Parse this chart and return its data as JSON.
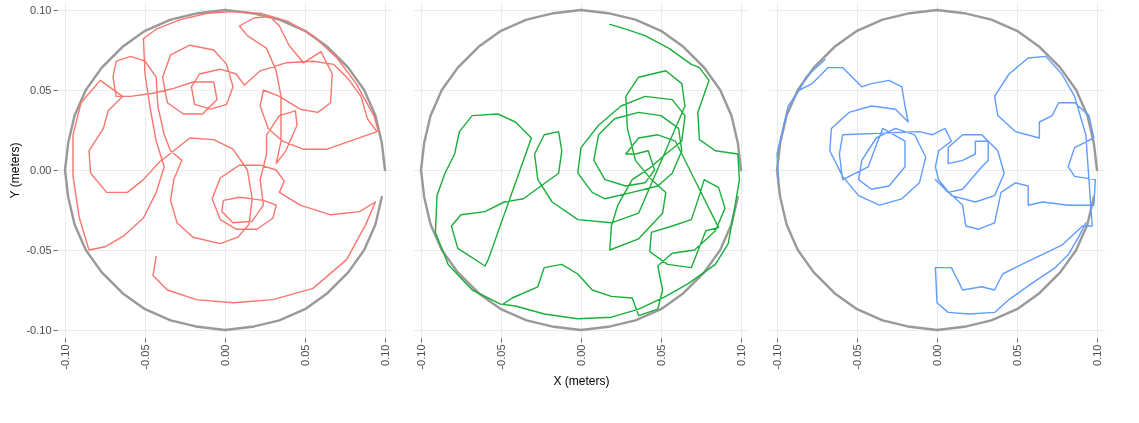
{
  "chart_data": [
    {
      "type": "line",
      "ylabel": "Y (meters)",
      "xlim": [
        -0.105,
        0.105
      ],
      "ylim": [
        -0.105,
        0.105
      ],
      "xticks": [
        {
          "value": -0.1,
          "label": "-0.10"
        },
        {
          "value": -0.05,
          "label": "-0.05"
        },
        {
          "value": 0,
          "label": "0.00"
        },
        {
          "value": 0.05,
          "label": "0.05"
        },
        {
          "value": 0.1,
          "label": "0.10"
        }
      ],
      "yticks": [
        {
          "value": -0.1,
          "label": "-0.10"
        },
        {
          "value": -0.05,
          "label": "-0.05"
        },
        {
          "value": 0,
          "label": "0.00"
        },
        {
          "value": 0.05,
          "label": "0.05"
        },
        {
          "value": 0.1,
          "label": "0.10"
        }
      ],
      "grid": true,
      "series": [
        {
          "color": "#999999",
          "x": [
            0.1,
            0.098,
            0.094,
            0.087,
            0.077,
            0.064,
            0.05,
            0.034,
            0.017,
            0,
            -0.017,
            -0.034,
            -0.05,
            -0.064,
            -0.077,
            -0.087,
            -0.094,
            -0.098,
            -0.1,
            -0.098,
            -0.094,
            -0.087,
            -0.077,
            -0.064,
            -0.05,
            -0.034,
            -0.017,
            0,
            0.017,
            0.034,
            0.05,
            0.064,
            0.077,
            0.087,
            0.094,
            0.098
          ],
          "values": [
            0,
            0.017,
            0.034,
            0.05,
            0.064,
            0.077,
            0.087,
            0.094,
            0.098,
            0.1,
            0.098,
            0.094,
            0.087,
            0.077,
            0.064,
            0.05,
            0.034,
            0.017,
            0,
            -0.017,
            -0.034,
            -0.05,
            -0.064,
            -0.077,
            -0.087,
            -0.094,
            -0.098,
            -0.1,
            -0.098,
            -0.094,
            -0.087,
            -0.077,
            -0.064,
            -0.05,
            -0.034,
            -0.017
          ]
        },
        {
          "color": "#f8766d",
          "x": [
            -0.043,
            -0.045,
            -0.036,
            -0.018,
            0.005,
            0.03,
            0.055,
            0.076,
            0.088,
            0.094,
            0.084,
            0.066,
            0.047,
            0.034,
            0.037,
            0.032,
            0.022,
            0.009,
            -0.003,
            -0.008,
            -0.003,
            0.007,
            0.02,
            0.03,
            0.032,
            0.024,
            0.009,
            -0.001,
            -0.002,
            0.005,
            0.017,
            0.024,
            0.022,
            0.026,
            0.026,
            0.034,
            0.044,
            0.045,
            0.038,
            0.032,
            0.035,
            0.035,
            0.032,
            0.026,
            0.014,
            0.009,
            0.018,
            0.028,
            0.034,
            0.04,
            0.049,
            0.06,
            0.067,
            0.066,
            0.058,
            0.047,
            0.034,
            0.024,
            0.022,
            0.027,
            0.036,
            0.049,
            0.064,
            0.078,
            0.095,
            0.089,
            0.085,
            0.077,
            0.068,
            0.055,
            0.038,
            0.022,
            0.012,
            0.007,
            -0.003,
            -0.016,
            -0.021,
            -0.019,
            -0.009,
            0.001,
            0.005,
            0.001,
            -0.007,
            -0.022,
            -0.034,
            -0.039,
            -0.036,
            -0.026,
            -0.014,
            -0.005,
            -0.007,
            -0.02,
            -0.032,
            -0.045,
            -0.059,
            -0.068,
            -0.07,
            -0.068,
            -0.059,
            -0.05,
            -0.043,
            -0.042,
            -0.038,
            -0.034,
            -0.027,
            -0.032,
            -0.034,
            -0.03,
            -0.02,
            -0.003,
            0.008,
            0.015,
            0.017,
            0.014,
            0.005,
            -0.007,
            -0.022,
            -0.032,
            -0.041,
            -0.051,
            -0.061,
            -0.074,
            -0.084,
            -0.085,
            -0.076,
            -0.073,
            -0.064,
            -0.078,
            -0.09,
            -0.095,
            -0.095,
            -0.091,
            -0.085,
            -0.075,
            -0.063,
            -0.051,
            -0.043,
            -0.038,
            -0.043,
            -0.047,
            -0.05,
            -0.051,
            -0.043,
            -0.028,
            -0.011,
            0.005,
            0.022,
            0.039,
            0.055,
            0.07,
            0.082,
            0.093,
            0.096
          ],
          "values": [
            -0.054,
            -0.066,
            -0.075,
            -0.081,
            -0.083,
            -0.081,
            -0.074,
            -0.056,
            -0.034,
            -0.02,
            -0.026,
            -0.028,
            -0.022,
            -0.014,
            -0.007,
            0.0,
            0.003,
            0.003,
            -0.005,
            -0.018,
            -0.031,
            -0.037,
            -0.037,
            -0.03,
            -0.022,
            -0.019,
            -0.017,
            -0.019,
            -0.026,
            -0.033,
            -0.032,
            -0.022,
            -0.006,
            0.01,
            0.022,
            0.034,
            0.037,
            0.028,
            0.012,
            0.004,
            0.018,
            0.046,
            0.062,
            0.076,
            0.084,
            0.09,
            0.095,
            0.096,
            0.09,
            0.078,
            0.067,
            0.074,
            0.06,
            0.042,
            0.036,
            0.038,
            0.046,
            0.05,
            0.04,
            0.026,
            0.018,
            0.013,
            0.013,
            0.018,
            0.024,
            0.032,
            0.046,
            0.057,
            0.066,
            0.068,
            0.067,
            0.062,
            0.053,
            0.06,
            0.063,
            0.06,
            0.052,
            0.041,
            0.038,
            0.041,
            0.052,
            0.066,
            0.075,
            0.078,
            0.072,
            0.058,
            0.042,
            0.035,
            0.035,
            0.044,
            0.055,
            0.055,
            0.051,
            0.048,
            0.046,
            0.046,
            0.058,
            0.068,
            0.071,
            0.068,
            0.058,
            0.04,
            0.022,
            0.012,
            0.006,
            -0.006,
            -0.019,
            -0.033,
            -0.042,
            -0.046,
            -0.042,
            -0.034,
            -0.018,
            0.0,
            0.013,
            0.019,
            0.02,
            0.012,
            0.005,
            -0.006,
            -0.014,
            -0.014,
            -0.002,
            0.012,
            0.026,
            0.037,
            0.046,
            0.056,
            0.042,
            0.022,
            -0.004,
            -0.03,
            -0.05,
            -0.048,
            -0.041,
            -0.03,
            -0.014,
            0.002,
            0.018,
            0.04,
            0.06,
            0.082,
            0.088,
            0.094,
            0.098,
            0.099,
            0.098,
            0.093,
            0.084,
            0.07,
            0.054,
            0.034,
            0.024
          ]
        }
      ]
    },
    {
      "type": "line",
      "xlabel": "X (meters)",
      "xlim": [
        -0.105,
        0.105
      ],
      "ylim": [
        -0.105,
        0.105
      ],
      "xticks": [
        {
          "value": -0.1,
          "label": "-0.10"
        },
        {
          "value": -0.05,
          "label": "-0.05"
        },
        {
          "value": 0,
          "label": "0.00"
        },
        {
          "value": 0.05,
          "label": "0.05"
        },
        {
          "value": 0.1,
          "label": "0.10"
        }
      ],
      "yticks": [
        {
          "value": -0.1,
          "label": null
        },
        {
          "value": -0.05,
          "label": null
        },
        {
          "value": 0,
          "label": null
        },
        {
          "value": 0.05,
          "label": null
        },
        {
          "value": 0.1,
          "label": null
        }
      ],
      "grid": true,
      "tick_labels": "x",
      "series": [
        {
          "color": "#999999",
          "x": [
            0.1,
            0.098,
            0.094,
            0.087,
            0.077,
            0.064,
            0.05,
            0.034,
            0.017,
            0,
            -0.017,
            -0.034,
            -0.05,
            -0.064,
            -0.077,
            -0.087,
            -0.094,
            -0.098,
            -0.1,
            -0.098,
            -0.094,
            -0.087,
            -0.077,
            -0.064,
            -0.05,
            -0.034,
            -0.017,
            0,
            0.017,
            0.034,
            0.05,
            0.064,
            0.077,
            0.087,
            0.094,
            0.098
          ],
          "values": [
            0,
            0.017,
            0.034,
            0.05,
            0.064,
            0.077,
            0.087,
            0.094,
            0.098,
            0.1,
            0.098,
            0.094,
            0.087,
            0.077,
            0.064,
            0.05,
            0.034,
            0.017,
            0,
            -0.017,
            -0.034,
            -0.05,
            -0.064,
            -0.077,
            -0.087,
            -0.094,
            -0.098,
            -0.1,
            -0.098,
            -0.094,
            -0.087,
            -0.077,
            -0.064,
            -0.05,
            -0.034,
            -0.017
          ]
        },
        {
          "color": "#1aae3a",
          "x": [
            0.018,
            0.028,
            0.04,
            0.055,
            0.069,
            0.074,
            0.08,
            0.073,
            0.074,
            0.084,
            0.098,
            0.099,
            0.096,
            0.092,
            0.084,
            0.067,
            0.053,
            0.036,
            0.019,
            -0.002,
            -0.023,
            -0.041,
            -0.049,
            -0.043,
            -0.027,
            -0.023,
            -0.012,
            -0.002,
            0.007,
            0.019,
            0.032,
            0.036,
            0.048,
            0.051,
            0.048,
            0.057,
            0.071,
            0.084,
            0.09,
            0.086,
            0.077,
            0.073,
            0.069,
            0.057,
            0.044,
            0.043,
            0.054,
            0.069,
            0.078,
            0.086,
            0.067,
            0.059,
            0.048,
            0.036,
            0.028,
            0.034,
            0.042,
            0.046,
            0.04,
            0.028,
            0.015,
            0.008,
            0.011,
            0.021,
            0.036,
            0.05,
            0.061,
            0.063,
            0.057,
            0.048,
            0.032,
            0.015,
            0.007,
            -0.002,
            0.0,
            0.011,
            0.025,
            0.04,
            0.057,
            0.065,
            0.063,
            0.053,
            0.044,
            0.032,
            0.023,
            0.019,
            0.018,
            0.036,
            0.051,
            0.053,
            0.044,
            0.034,
            0.029,
            0.028,
            0.036,
            0.053,
            0.063,
            0.065,
            0.036,
            0.019,
            -0.002,
            -0.018,
            -0.027,
            -0.029,
            -0.023,
            -0.014,
            -0.012,
            -0.014,
            -0.036,
            -0.048,
            -0.06,
            -0.075,
            -0.081,
            -0.077,
            -0.06,
            -0.058,
            -0.031,
            -0.041,
            -0.052,
            -0.068,
            -0.076,
            -0.079,
            -0.085,
            -0.09,
            -0.091,
            -0.083,
            -0.068,
            -0.05
          ],
          "values": [
            0.091,
            0.088,
            0.084,
            0.076,
            0.066,
            0.064,
            0.056,
            0.036,
            0.019,
            0.012,
            0.01,
            -0.006,
            -0.024,
            -0.046,
            -0.059,
            -0.071,
            -0.079,
            -0.087,
            -0.092,
            -0.093,
            -0.09,
            -0.085,
            -0.084,
            -0.08,
            -0.073,
            -0.061,
            -0.059,
            -0.065,
            -0.075,
            -0.079,
            -0.08,
            -0.091,
            -0.087,
            -0.075,
            -0.06,
            -0.052,
            -0.05,
            -0.038,
            -0.024,
            -0.011,
            -0.006,
            -0.019,
            -0.031,
            -0.035,
            -0.039,
            -0.051,
            -0.059,
            -0.061,
            -0.038,
            -0.036,
            0.002,
            0.018,
            0.022,
            0.02,
            0.01,
            0.01,
            0.012,
            0.0,
            -0.008,
            -0.01,
            -0.006,
            0.006,
            0.022,
            0.032,
            0.036,
            0.034,
            0.026,
            0.012,
            -0.002,
            -0.01,
            -0.014,
            -0.018,
            -0.014,
            -0.002,
            0.014,
            0.028,
            0.04,
            0.046,
            0.044,
            0.034,
            0.018,
            0.01,
            0.002,
            -0.006,
            -0.022,
            -0.035,
            -0.05,
            -0.043,
            -0.027,
            -0.014,
            -0.006,
            0.006,
            0.026,
            0.046,
            0.058,
            0.062,
            0.054,
            0.04,
            -0.027,
            -0.033,
            -0.031,
            -0.02,
            -0.006,
            0.01,
            0.022,
            0.024,
            0.012,
            -0.002,
            -0.018,
            -0.02,
            -0.026,
            -0.028,
            -0.035,
            -0.049,
            -0.06,
            -0.056,
            0.02,
            0.03,
            0.035,
            0.034,
            0.024,
            0.01,
            -0.002,
            -0.016,
            -0.039,
            -0.059,
            -0.075,
            -0.084
          ]
        }
      ]
    },
    {
      "type": "line",
      "xlim": [
        -0.105,
        0.105
      ],
      "ylim": [
        -0.105,
        0.105
      ],
      "xticks": [
        {
          "value": -0.1,
          "label": "-0.10"
        },
        {
          "value": -0.05,
          "label": "-0.05"
        },
        {
          "value": 0,
          "label": "0.00"
        },
        {
          "value": 0.05,
          "label": "0.05"
        },
        {
          "value": 0.1,
          "label": "0.10"
        }
      ],
      "yticks": [
        {
          "value": -0.1,
          "label": null
        },
        {
          "value": -0.05,
          "label": null
        },
        {
          "value": 0,
          "label": null
        },
        {
          "value": 0.05,
          "label": null
        },
        {
          "value": 0.1,
          "label": null
        }
      ],
      "grid": true,
      "tick_labels": "x",
      "series": [
        {
          "color": "#999999",
          "x": [
            0.1,
            0.098,
            0.094,
            0.087,
            0.077,
            0.064,
            0.05,
            0.034,
            0.017,
            0,
            -0.017,
            -0.034,
            -0.05,
            -0.064,
            -0.077,
            -0.087,
            -0.094,
            -0.098,
            -0.1,
            -0.098,
            -0.094,
            -0.087,
            -0.077,
            -0.064,
            -0.05,
            -0.034,
            -0.017,
            0,
            0.017,
            0.034,
            0.05,
            0.064,
            0.077,
            0.087,
            0.094,
            0.098
          ],
          "values": [
            0,
            0.017,
            0.034,
            0.05,
            0.064,
            0.077,
            0.087,
            0.094,
            0.098,
            0.1,
            0.098,
            0.094,
            0.087,
            0.077,
            0.064,
            0.05,
            0.034,
            0.017,
            0,
            -0.017,
            -0.034,
            -0.05,
            -0.064,
            -0.077,
            -0.087,
            -0.094,
            -0.098,
            -0.1,
            -0.098,
            -0.094,
            -0.087,
            -0.077,
            -0.064,
            -0.05,
            -0.034,
            -0.017
          ]
        },
        {
          "color": "#619cff",
          "x": [
            -0.099,
            -0.1,
            -0.093,
            -0.086,
            -0.082,
            -0.07,
            -0.082,
            -0.086,
            -0.078,
            -0.068,
            -0.059,
            -0.047,
            -0.041,
            -0.03,
            -0.022,
            -0.02,
            -0.018,
            -0.026,
            -0.041,
            -0.055,
            -0.066,
            -0.067,
            -0.059,
            -0.049,
            -0.036,
            -0.022,
            -0.011,
            -0.007,
            -0.014,
            -0.026,
            -0.038,
            -0.047,
            -0.049,
            -0.041,
            -0.03,
            -0.02,
            -0.02,
            -0.034,
            -0.043,
            -0.059,
            -0.061,
            -0.059,
            -0.011,
            -0.003,
            0.005,
            0.009,
            0.001,
            -0.001,
            0.001,
            0.009,
            0.024,
            0.036,
            0.042,
            0.038,
            0.028,
            0.016,
            0.007,
            0.007,
            0.016,
            0.024,
            0.024,
            0.032,
            0.032,
            0.028,
            0.016,
            0.007,
            -0.001,
            0.016,
            0.018,
            0.026,
            0.036,
            0.04,
            0.049,
            0.057,
            0.057,
            0.066,
            0.082,
            0.098,
            0.099,
            0.086,
            0.082,
            0.086,
            0.098,
            0.095,
            0.086,
            0.076,
            0.072,
            0.064,
            0.064,
            0.049,
            0.038,
            0.036,
            0.045,
            0.057,
            0.068,
            0.078,
            0.086,
            0.093,
            0.097,
            0.091,
            0.078,
            0.053,
            0.041,
            0.036,
            0.028,
            0.016,
            0.009,
            -0.001,
            0.0,
            0.007,
            0.02,
            0.036,
            0.045,
            0.059,
            0.074,
            0.082,
            0.089,
            0.093
          ],
          "values": [
            -0.006,
            0.01,
            0.04,
            0.05,
            0.058,
            0.069,
            0.058,
            0.05,
            0.054,
            0.064,
            0.064,
            0.052,
            0.054,
            0.056,
            0.052,
            0.04,
            0.03,
            0.038,
            0.04,
            0.036,
            0.026,
            0.012,
            -0.004,
            -0.016,
            -0.022,
            -0.018,
            -0.008,
            0.008,
            0.022,
            0.026,
            0.02,
            0.006,
            -0.006,
            -0.012,
            -0.01,
            0.002,
            0.018,
            0.026,
            0.002,
            -0.006,
            0.01,
            0.022,
            0.024,
            0.022,
            0.026,
            0.018,
            0.012,
            0.002,
            -0.006,
            -0.016,
            -0.02,
            -0.016,
            -0.002,
            0.012,
            0.022,
            0.022,
            0.014,
            0.004,
            0.006,
            0.01,
            0.018,
            0.018,
            0.006,
            0.002,
            -0.012,
            -0.014,
            -0.006,
            -0.022,
            -0.035,
            -0.037,
            -0.033,
            -0.014,
            -0.008,
            -0.01,
            -0.022,
            -0.02,
            -0.022,
            -0.022,
            -0.006,
            -0.004,
            0.002,
            0.014,
            0.02,
            0.034,
            0.042,
            0.042,
            0.034,
            0.03,
            0.02,
            0.024,
            0.034,
            0.046,
            0.06,
            0.07,
            0.071,
            0.06,
            0.046,
            0.022,
            -0.035,
            -0.035,
            -0.047,
            -0.059,
            -0.065,
            -0.075,
            -0.073,
            -0.075,
            -0.061,
            -0.061,
            -0.083,
            -0.089,
            -0.09,
            -0.089,
            -0.081,
            -0.071,
            -0.061,
            -0.053,
            -0.041,
            -0.033
          ]
        }
      ]
    }
  ]
}
